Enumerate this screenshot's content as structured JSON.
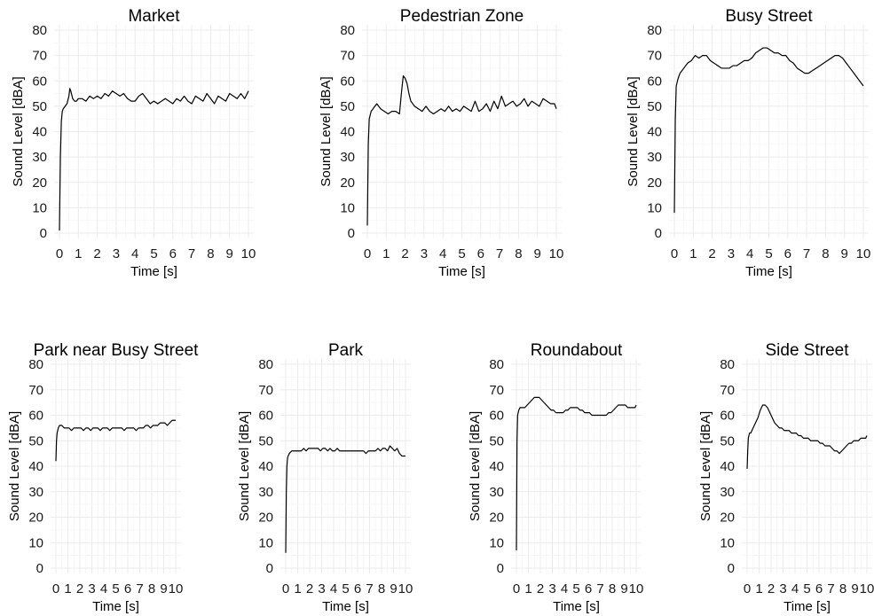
{
  "chart_data": [
    {
      "type": "line",
      "title": "Market",
      "xlabel": "Time [s]",
      "ylabel": "Sound Level [dBA]",
      "xlim": [
        0,
        10
      ],
      "ylim": [
        0,
        80
      ],
      "grid": true,
      "xticks": [
        "0",
        "1",
        "2",
        "3",
        "4",
        "5",
        "6",
        "7",
        "8",
        "9",
        "10"
      ],
      "yticks": [
        "0",
        "10",
        "20",
        "30",
        "40",
        "50",
        "60",
        "70",
        "80"
      ],
      "series": [
        {
          "x": [
            0,
            0.05,
            0.1,
            0.15,
            0.2,
            0.3,
            0.4,
            0.5,
            0.55,
            0.6,
            0.7,
            0.8,
            0.9,
            1.0,
            1.2,
            1.4,
            1.6,
            1.8,
            2.0,
            2.2,
            2.4,
            2.6,
            2.8,
            3.0,
            3.2,
            3.4,
            3.6,
            3.8,
            4.0,
            4.2,
            4.4,
            4.6,
            4.8,
            5.0,
            5.2,
            5.4,
            5.6,
            5.8,
            6.0,
            6.2,
            6.4,
            6.6,
            6.8,
            7.0,
            7.2,
            7.4,
            7.6,
            7.8,
            8.0,
            8.2,
            8.4,
            8.6,
            8.8,
            9.0,
            9.2,
            9.4,
            9.6,
            9.8,
            10
          ],
          "y": [
            1,
            30,
            44,
            48,
            49,
            50,
            51,
            54,
            57,
            56,
            53,
            52,
            52,
            53,
            53,
            52,
            54,
            53,
            54,
            53,
            55,
            54,
            56,
            55,
            54,
            55,
            53,
            52,
            52,
            54,
            55,
            53,
            51,
            52,
            51,
            52,
            53,
            52,
            51,
            53,
            52,
            54,
            52,
            51,
            54,
            53,
            52,
            55,
            53,
            51,
            54,
            53,
            52,
            55,
            54,
            53,
            55,
            53,
            56
          ]
        }
      ]
    },
    {
      "type": "line",
      "title": "Pedestrian Zone",
      "xlabel": "Time [s]",
      "ylabel": "Sound Level [dBA]",
      "xlim": [
        0,
        10
      ],
      "ylim": [
        0,
        80
      ],
      "grid": true,
      "xticks": [
        "0",
        "1",
        "2",
        "3",
        "4",
        "5",
        "6",
        "7",
        "8",
        "9",
        "10"
      ],
      "yticks": [
        "0",
        "10",
        "20",
        "30",
        "40",
        "50",
        "60",
        "70",
        "80"
      ],
      "series": [
        {
          "x": [
            0,
            0.05,
            0.1,
            0.2,
            0.3,
            0.5,
            0.7,
            0.9,
            1.1,
            1.3,
            1.5,
            1.7,
            1.8,
            1.9,
            2.0,
            2.1,
            2.2,
            2.3,
            2.5,
            2.7,
            2.9,
            3.1,
            3.3,
            3.5,
            3.7,
            3.9,
            4.1,
            4.3,
            4.5,
            4.7,
            4.9,
            5.1,
            5.3,
            5.5,
            5.7,
            5.9,
            6.1,
            6.3,
            6.5,
            6.7,
            6.9,
            7.1,
            7.3,
            7.5,
            7.7,
            7.9,
            8.1,
            8.3,
            8.5,
            8.7,
            8.9,
            9.1,
            9.3,
            9.5,
            9.7,
            9.9,
            10
          ],
          "y": [
            3,
            35,
            45,
            48,
            49,
            51,
            49,
            48,
            47,
            48,
            48,
            47,
            55,
            62,
            61,
            59,
            55,
            52,
            50,
            49,
            48,
            50,
            48,
            47,
            48,
            49,
            48,
            50,
            48,
            49,
            48,
            50,
            49,
            48,
            52,
            48,
            49,
            51,
            48,
            52,
            49,
            54,
            50,
            51,
            52,
            50,
            51,
            53,
            50,
            52,
            51,
            50,
            53,
            52,
            51,
            51,
            49
          ]
        }
      ]
    },
    {
      "type": "line",
      "title": "Busy Street",
      "xlabel": "Time [s]",
      "ylabel": "Sound Level [dBA]",
      "xlim": [
        0,
        10
      ],
      "ylim": [
        0,
        80
      ],
      "grid": true,
      "xticks": [
        "0",
        "1",
        "2",
        "3",
        "4",
        "5",
        "6",
        "7",
        "8",
        "9",
        "10"
      ],
      "yticks": [
        "0",
        "10",
        "20",
        "30",
        "40",
        "50",
        "60",
        "70",
        "80"
      ],
      "series": [
        {
          "x": [
            0,
            0.05,
            0.1,
            0.2,
            0.3,
            0.5,
            0.7,
            0.9,
            1.1,
            1.3,
            1.5,
            1.7,
            1.9,
            2.1,
            2.3,
            2.5,
            2.7,
            2.9,
            3.1,
            3.3,
            3.5,
            3.7,
            3.9,
            4.1,
            4.3,
            4.5,
            4.7,
            4.9,
            5.1,
            5.3,
            5.5,
            5.7,
            5.9,
            6.1,
            6.3,
            6.5,
            6.7,
            6.9,
            7.1,
            7.3,
            7.5,
            7.7,
            7.9,
            8.1,
            8.3,
            8.5,
            8.7,
            8.9,
            9.1,
            9.3,
            9.5,
            9.7,
            9.9,
            10
          ],
          "y": [
            8,
            45,
            58,
            61,
            63,
            65,
            67,
            68,
            70,
            69,
            70,
            70,
            68,
            67,
            66,
            65,
            65,
            65,
            66,
            66,
            67,
            68,
            68,
            69,
            71,
            72,
            73,
            73,
            72,
            71,
            71,
            70,
            70,
            68,
            67,
            65,
            64,
            63,
            63,
            64,
            65,
            66,
            67,
            68,
            69,
            70,
            70,
            69,
            67,
            65,
            63,
            61,
            59,
            58
          ]
        }
      ]
    },
    {
      "type": "line",
      "title": "Park near Busy Street",
      "xlabel": "Time [s]",
      "ylabel": "Sound Level [dBA]",
      "xlim": [
        0,
        10
      ],
      "ylim": [
        0,
        80
      ],
      "grid": true,
      "xticks": [
        "0",
        "1",
        "2",
        "3",
        "4",
        "5",
        "6",
        "7",
        "8",
        "9",
        "10"
      ],
      "yticks": [
        "0",
        "10",
        "20",
        "30",
        "40",
        "50",
        "60",
        "70",
        "80"
      ],
      "series": [
        {
          "x": [
            0,
            0.05,
            0.1,
            0.2,
            0.3,
            0.5,
            0.7,
            0.9,
            1.1,
            1.3,
            1.5,
            1.7,
            1.9,
            2.1,
            2.3,
            2.5,
            2.7,
            2.9,
            3.1,
            3.3,
            3.5,
            3.7,
            3.9,
            4.1,
            4.3,
            4.5,
            4.7,
            4.9,
            5.1,
            5.3,
            5.5,
            5.7,
            5.9,
            6.1,
            6.3,
            6.5,
            6.7,
            6.9,
            7.1,
            7.3,
            7.5,
            7.7,
            7.9,
            8.1,
            8.3,
            8.5,
            8.7,
            8.9,
            9.1,
            9.3,
            9.5,
            9.7,
            9.9,
            10
          ],
          "y": [
            42,
            50,
            53,
            55,
            56,
            56,
            55,
            55,
            55,
            54,
            55,
            55,
            55,
            55,
            54,
            55,
            55,
            54,
            55,
            55,
            55,
            54,
            55,
            55,
            55,
            54,
            55,
            55,
            55,
            55,
            55,
            54,
            55,
            55,
            55,
            55,
            54,
            55,
            55,
            55,
            56,
            56,
            55,
            56,
            56,
            56,
            57,
            57,
            57,
            56,
            57,
            58,
            58,
            58
          ]
        }
      ]
    },
    {
      "type": "line",
      "title": "Park",
      "xlabel": "Time [s]",
      "ylabel": "Sound Level [dBA]",
      "xlim": [
        0,
        10
      ],
      "ylim": [
        0,
        80
      ],
      "grid": true,
      "xticks": [
        "0",
        "1",
        "2",
        "3",
        "4",
        "5",
        "6",
        "7",
        "8",
        "9",
        "10"
      ],
      "yticks": [
        "0",
        "10",
        "20",
        "30",
        "40",
        "50",
        "60",
        "70",
        "80"
      ],
      "series": [
        {
          "x": [
            0,
            0.05,
            0.1,
            0.15,
            0.2,
            0.3,
            0.5,
            0.7,
            0.9,
            1.1,
            1.3,
            1.5,
            1.7,
            1.9,
            2.1,
            2.3,
            2.5,
            2.7,
            2.9,
            3.1,
            3.3,
            3.5,
            3.7,
            3.9,
            4.1,
            4.3,
            4.5,
            4.7,
            4.9,
            5.1,
            5.3,
            5.5,
            5.7,
            5.9,
            6.1,
            6.3,
            6.5,
            6.7,
            6.9,
            7.1,
            7.3,
            7.5,
            7.7,
            7.9,
            8.1,
            8.3,
            8.5,
            8.7,
            8.9,
            9.1,
            9.3,
            9.5,
            9.7,
            9.9,
            10
          ],
          "y": [
            6,
            30,
            40,
            43,
            44,
            45,
            46,
            46,
            46,
            46,
            46,
            47,
            46,
            47,
            47,
            47,
            47,
            47,
            46,
            47,
            47,
            46,
            47,
            46,
            46,
            47,
            46,
            46,
            46,
            46,
            46,
            46,
            46,
            46,
            46,
            46,
            46,
            45,
            46,
            46,
            46,
            46,
            47,
            46,
            47,
            47,
            46,
            48,
            47,
            46,
            47,
            45,
            44,
            44,
            44
          ]
        }
      ]
    },
    {
      "type": "line",
      "title": "Roundabout",
      "xlabel": "Time [s]",
      "ylabel": "Sound Level [dBA]",
      "xlim": [
        0,
        10
      ],
      "ylim": [
        0,
        80
      ],
      "grid": true,
      "xticks": [
        "0",
        "1",
        "2",
        "3",
        "4",
        "5",
        "6",
        "7",
        "8",
        "9",
        "10"
      ],
      "yticks": [
        "0",
        "10",
        "20",
        "30",
        "40",
        "50",
        "60",
        "70",
        "80"
      ],
      "series": [
        {
          "x": [
            0,
            0.05,
            0.1,
            0.2,
            0.3,
            0.5,
            0.7,
            0.9,
            1.1,
            1.3,
            1.5,
            1.7,
            1.9,
            2.1,
            2.3,
            2.5,
            2.7,
            2.9,
            3.1,
            3.3,
            3.5,
            3.7,
            3.9,
            4.1,
            4.3,
            4.5,
            4.7,
            4.9,
            5.1,
            5.3,
            5.5,
            5.7,
            5.9,
            6.1,
            6.3,
            6.5,
            6.7,
            6.9,
            7.1,
            7.3,
            7.5,
            7.7,
            7.9,
            8.1,
            8.3,
            8.5,
            8.7,
            8.9,
            9.1,
            9.3,
            9.5,
            9.7,
            9.9,
            10
          ],
          "y": [
            7,
            50,
            60,
            62,
            63,
            63,
            63,
            64,
            65,
            66,
            67,
            67,
            67,
            66,
            65,
            64,
            63,
            62,
            62,
            61,
            61,
            61,
            61,
            62,
            62,
            63,
            63,
            63,
            63,
            62,
            62,
            61,
            61,
            61,
            60,
            60,
            60,
            60,
            60,
            60,
            60,
            61,
            61,
            62,
            63,
            64,
            64,
            64,
            64,
            63,
            63,
            63,
            63,
            64
          ]
        }
      ]
    },
    {
      "type": "line",
      "title": "Side Street",
      "xlabel": "Time [s]",
      "ylabel": "Sound Level [dBA]",
      "xlim": [
        0,
        10
      ],
      "ylim": [
        0,
        80
      ],
      "grid": true,
      "xticks": [
        "0",
        "1",
        "2",
        "3",
        "4",
        "5",
        "6",
        "7",
        "8",
        "9",
        "10"
      ],
      "yticks": [
        "0",
        "10",
        "20",
        "30",
        "40",
        "50",
        "60",
        "70",
        "80"
      ],
      "series": [
        {
          "x": [
            0,
            0.05,
            0.1,
            0.2,
            0.3,
            0.5,
            0.7,
            0.9,
            1.1,
            1.3,
            1.5,
            1.7,
            1.9,
            2.1,
            2.3,
            2.5,
            2.7,
            2.9,
            3.1,
            3.3,
            3.5,
            3.7,
            3.9,
            4.1,
            4.3,
            4.5,
            4.7,
            4.9,
            5.1,
            5.3,
            5.5,
            5.7,
            5.9,
            6.1,
            6.3,
            6.5,
            6.7,
            6.9,
            7.1,
            7.3,
            7.5,
            7.7,
            7.9,
            8.1,
            8.3,
            8.5,
            8.7,
            8.9,
            9.1,
            9.3,
            9.5,
            9.7,
            9.9,
            10
          ],
          "y": [
            39,
            46,
            51,
            53,
            53,
            55,
            57,
            59,
            62,
            64,
            64,
            63,
            61,
            59,
            57,
            56,
            55,
            55,
            54,
            54,
            54,
            53,
            53,
            53,
            52,
            52,
            51,
            51,
            51,
            50,
            50,
            50,
            50,
            49,
            49,
            48,
            48,
            48,
            47,
            46,
            46,
            45,
            46,
            47,
            48,
            49,
            49,
            50,
            50,
            50,
            51,
            51,
            51,
            52
          ]
        }
      ]
    }
  ]
}
